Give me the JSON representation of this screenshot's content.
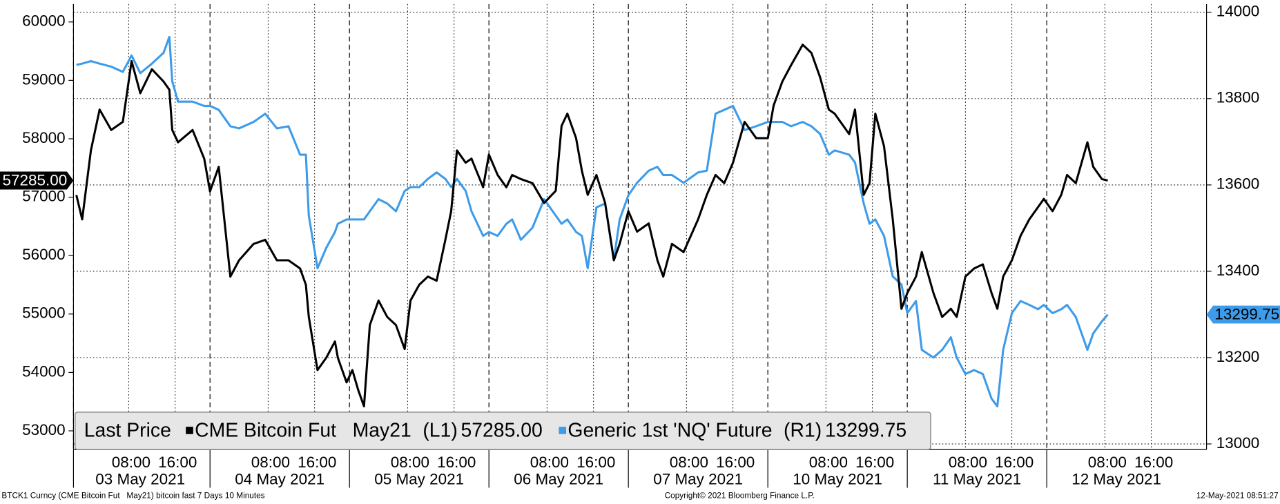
{
  "chart_data": {
    "type": "line",
    "x": [
      -1,
      0,
      1.5,
      3,
      5,
      7,
      8.5,
      10,
      12,
      14,
      15,
      15.5,
      16.5,
      19,
      21,
      22,
      23.5,
      25.5,
      27,
      29.5,
      31.5,
      33.5,
      35.5,
      37.5,
      38.5,
      39,
      40.5,
      42,
      43.5,
      44,
      45.5,
      46.5,
      47.5,
      48.5,
      49.5,
      51,
      52.5,
      54,
      55.5,
      56.5,
      58,
      59.5,
      61,
      62.5,
      63.5,
      64.5,
      66,
      67,
      69,
      70,
      71.5,
      73,
      74,
      75.5,
      77.5,
      79.5,
      81.5,
      82.5,
      83.5,
      85,
      86,
      87,
      88.5,
      90,
      91.5,
      92.5,
      94,
      95.5,
      97.5,
      99,
      100,
      101.5,
      103.5,
      106,
      107.5,
      109,
      110.5,
      112,
      113,
      114,
      116,
      118,
      119,
      120.5,
      122,
      124,
      125.5,
      127,
      128.5,
      129.5,
      132,
      133,
      134.5,
      135.5,
      136.5,
      138,
      139.5,
      141,
      142,
      143.5,
      144.5,
      146.5,
      148,
      149.5,
      150.5,
      152,
      153.5,
      155,
      156.5,
      157.5,
      158.5,
      160,
      161.5,
      163,
      164.5,
      165.5,
      167,
      168.5,
      169.5,
      171,
      173,
      174,
      175.5,
      176.5
    ],
    "series": [
      {
        "name": "Generic 1st 'NQ' Future",
        "axis": "y2",
        "color": "#3d9be9",
        "axis_tag": "(R1)",
        "last_label": "13299.75",
        "values": [
          13878,
          13881,
          13887,
          13881,
          13874,
          13862,
          13900,
          13859,
          13881,
          13906,
          13943,
          13840,
          13793,
          13793,
          13783,
          13783,
          13774,
          13736,
          13731,
          13746,
          13765,
          13731,
          13736,
          13670,
          13670,
          13529,
          13407,
          13454,
          13491,
          13510,
          13520,
          13520,
          13520,
          13520,
          13539,
          13567,
          13557,
          13539,
          13586,
          13595,
          13595,
          13614,
          13629,
          13614,
          13595,
          13614,
          13586,
          13539,
          13482,
          13491,
          13482,
          13510,
          13520,
          13473,
          13501,
          13567,
          13529,
          13510,
          13520,
          13491,
          13482,
          13407,
          13548,
          13557,
          13426,
          13520,
          13576,
          13605,
          13633,
          13642,
          13623,
          13623,
          13605,
          13629,
          13633,
          13765,
          13774,
          13783,
          13755,
          13727,
          13736,
          13746,
          13746,
          13746,
          13736,
          13746,
          13736,
          13718,
          13670,
          13680,
          13670,
          13652,
          13557,
          13510,
          13520,
          13482,
          13388,
          13369,
          13303,
          13331,
          13218,
          13200,
          13218,
          13247,
          13200,
          13162,
          13171,
          13162,
          13105,
          13087,
          13218,
          13303,
          13331,
          13322,
          13312,
          13322,
          13303,
          13312,
          13322,
          13294,
          13218,
          13256,
          13284,
          13299.75
        ]
      },
      {
        "name": "CME Bitcoin Fut   May21",
        "axis": "y",
        "color": "#000000",
        "axis_tag": "(L1)",
        "last_label": "57285.00",
        "values": [
          57036,
          56620,
          57800,
          58500,
          58150,
          58290,
          59330,
          58780,
          59190,
          58980,
          58840,
          58150,
          57940,
          58150,
          57660,
          57100,
          57520,
          55640,
          55920,
          56200,
          56270,
          55920,
          55920,
          55780,
          55500,
          54950,
          54040,
          54250,
          54530,
          54250,
          53830,
          54040,
          53700,
          53420,
          54810,
          55230,
          54950,
          54810,
          54400,
          55230,
          55500,
          55640,
          55570,
          56270,
          56760,
          57800,
          57590,
          57660,
          57170,
          57730,
          57380,
          57170,
          57380,
          57310,
          57240,
          56900,
          57110,
          58220,
          58430,
          58010,
          57450,
          57040,
          57380,
          56900,
          55920,
          56200,
          56760,
          56410,
          56550,
          55920,
          55640,
          56200,
          56060,
          56620,
          57040,
          57380,
          57240,
          57590,
          57940,
          58290,
          58010,
          58010,
          58570,
          58980,
          59260,
          59610,
          59470,
          59050,
          58500,
          58430,
          58080,
          58500,
          57040,
          57240,
          58430,
          57870,
          56620,
          55090,
          55360,
          55640,
          56060,
          55360,
          54950,
          55090,
          54950,
          55640,
          55780,
          55850,
          55360,
          55090,
          55640,
          55920,
          56340,
          56620,
          56830,
          56970,
          56760,
          57040,
          57380,
          57240,
          57940,
          57520,
          57310,
          57285
        ]
      }
    ],
    "legend_title": "Last Price",
    "xlim": [
      -1.5,
      193.5
    ],
    "xticks": [
      {
        "value": 8,
        "label": "08:00"
      },
      {
        "value": 16,
        "label": "16:00"
      },
      {
        "value": 32,
        "label": "08:00"
      },
      {
        "value": 40,
        "label": "16:00"
      },
      {
        "value": 56,
        "label": "08:00"
      },
      {
        "value": 64,
        "label": "16:00"
      },
      {
        "value": 80,
        "label": "08:00"
      },
      {
        "value": 88,
        "label": "16:00"
      },
      {
        "value": 104,
        "label": "08:00"
      },
      {
        "value": 112,
        "label": "16:00"
      },
      {
        "value": 128,
        "label": "08:00"
      },
      {
        "value": 136,
        "label": "16:00"
      },
      {
        "value": 152,
        "label": "08:00"
      },
      {
        "value": 160,
        "label": "16:00"
      },
      {
        "value": 176,
        "label": "08:00"
      },
      {
        "value": 184,
        "label": "16:00"
      }
    ],
    "x_groups": [
      {
        "value": 10,
        "label": "03 May 2021"
      },
      {
        "value": 34,
        "label": "04 May 2021"
      },
      {
        "value": 58,
        "label": "05 May 2021"
      },
      {
        "value": 82,
        "label": "06 May 2021"
      },
      {
        "value": 106,
        "label": "07 May 2021"
      },
      {
        "value": 130,
        "label": "10 May 2021"
      },
      {
        "value": 154,
        "label": "11 May 2021"
      },
      {
        "value": 178,
        "label": "12 May 2021"
      }
    ],
    "ylim": [
      52680,
      60306
    ],
    "yticks": [
      53000,
      54000,
      55000,
      56000,
      57000,
      58000,
      59000,
      60000
    ],
    "y2lim": [
      12987,
      14019
    ],
    "y2ticks": [
      13000,
      13200,
      13400,
      13600,
      13800,
      14000
    ],
    "grid": true,
    "footer": {
      "left": "BTCK1 Curncy (CME Bitcoin Fut   May21) bitcoin fast 7 Days 10 Minutes",
      "center": "Copyright© 2021 Bloomberg Finance L.P.",
      "right": "12-May-2021 08:51:27"
    }
  }
}
